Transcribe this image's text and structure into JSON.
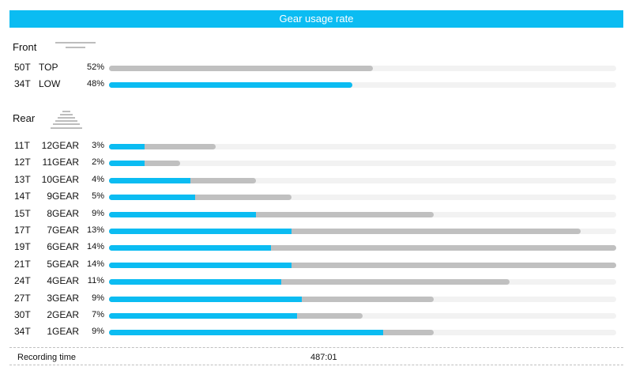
{
  "title": "Gear usage rate",
  "colors": {
    "accent": "#0bbcf2",
    "bar_gray": "#c0c0c0",
    "track": "#f2f2f2"
  },
  "front": {
    "label": "Front",
    "icon": "chainring-icon",
    "rows": [
      {
        "teeth": "50T",
        "gear": "TOP",
        "pct": "52%",
        "bar_scale": 0.52,
        "fill_scale": 0.0
      },
      {
        "teeth": "34T",
        "gear": "LOW",
        "pct": "48%",
        "bar_scale": 0.48,
        "fill_scale": 0.48
      }
    ]
  },
  "rear": {
    "label": "Rear",
    "icon": "cassette-icon",
    "rows": [
      {
        "teeth": "11T",
        "gear": "12GEAR",
        "pct": "3%",
        "bar_scale": 0.21,
        "fill_scale": 0.07
      },
      {
        "teeth": "12T",
        "gear": "11GEAR",
        "pct": "2%",
        "bar_scale": 0.14,
        "fill_scale": 0.07
      },
      {
        "teeth": "13T",
        "gear": "10GEAR",
        "pct": "4%",
        "bar_scale": 0.29,
        "fill_scale": 0.16
      },
      {
        "teeth": "14T",
        "gear": "9GEAR",
        "pct": "5%",
        "bar_scale": 0.36,
        "fill_scale": 0.17
      },
      {
        "teeth": "15T",
        "gear": "8GEAR",
        "pct": "9%",
        "bar_scale": 0.64,
        "fill_scale": 0.29
      },
      {
        "teeth": "17T",
        "gear": "7GEAR",
        "pct": "13%",
        "bar_scale": 0.93,
        "fill_scale": 0.36
      },
      {
        "teeth": "19T",
        "gear": "6GEAR",
        "pct": "14%",
        "bar_scale": 1.0,
        "fill_scale": 0.32
      },
      {
        "teeth": "21T",
        "gear": "5GEAR",
        "pct": "14%",
        "bar_scale": 1.0,
        "fill_scale": 0.36
      },
      {
        "teeth": "24T",
        "gear": "4GEAR",
        "pct": "11%",
        "bar_scale": 0.79,
        "fill_scale": 0.34
      },
      {
        "teeth": "27T",
        "gear": "3GEAR",
        "pct": "9%",
        "bar_scale": 0.64,
        "fill_scale": 0.38
      },
      {
        "teeth": "30T",
        "gear": "2GEAR",
        "pct": "7%",
        "bar_scale": 0.5,
        "fill_scale": 0.37
      },
      {
        "teeth": "34T",
        "gear": "1GEAR",
        "pct": "9%",
        "bar_scale": 0.64,
        "fill_scale": 0.54
      }
    ]
  },
  "recording": {
    "label": "Recording time",
    "value": "487:01"
  }
}
